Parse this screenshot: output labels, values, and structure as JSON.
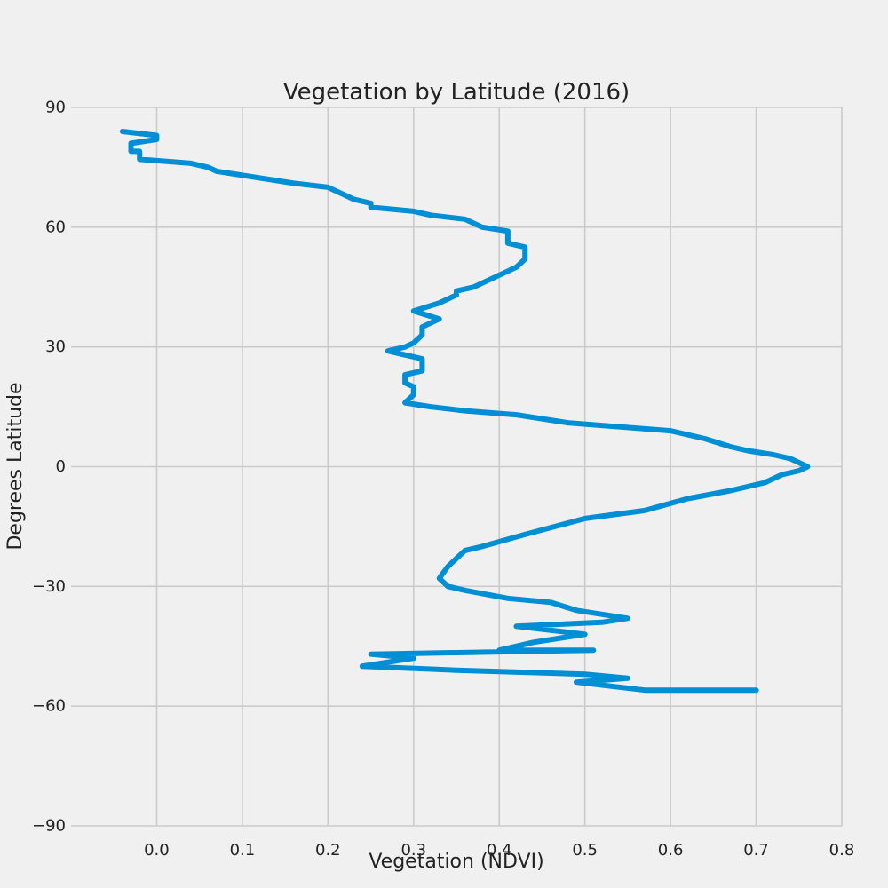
{
  "chart_data": {
    "type": "line",
    "title": "Vegetation by Latitude (2016)",
    "xlabel": "Vegetation (NDVI)",
    "ylabel": "Degrees Latitude",
    "xlim": [
      -0.1,
      0.8
    ],
    "ylim": [
      -90,
      90
    ],
    "x_ticks": [
      0.0,
      0.1,
      0.2,
      0.3,
      0.4,
      0.5,
      0.6,
      0.7,
      0.8
    ],
    "x_tick_labels": [
      "0.0",
      "0.1",
      "0.2",
      "0.3",
      "0.4",
      "0.5",
      "0.6",
      "0.7",
      "0.8"
    ],
    "y_ticks": [
      90,
      60,
      30,
      0,
      -30,
      -60,
      -90
    ],
    "y_tick_labels": [
      "90",
      "60",
      "30",
      "0",
      "−30",
      "−60",
      "−90"
    ],
    "grid": true,
    "colors": {
      "background": "#f0f0f0",
      "line": "#008fd5",
      "grid": "#cbcbcb",
      "text": "#222222"
    },
    "series": [
      {
        "x": [
          -0.04,
          0.0,
          0.0,
          -0.03,
          -0.03,
          -0.02,
          -0.02,
          0.04,
          0.06,
          0.07,
          0.1,
          0.13,
          0.16,
          0.2,
          0.23,
          0.25,
          0.25,
          0.3,
          0.32,
          0.36,
          0.38,
          0.41,
          0.41,
          0.43,
          0.43,
          0.42,
          0.41,
          0.39,
          0.37,
          0.35,
          0.35,
          0.33,
          0.3,
          0.33,
          0.31,
          0.31,
          0.3,
          0.29,
          0.27,
          0.29,
          0.31,
          0.31,
          0.29,
          0.29,
          0.3,
          0.3,
          0.29,
          0.32,
          0.36,
          0.42,
          0.48,
          0.54,
          0.6,
          0.64,
          0.67,
          0.69,
          0.72,
          0.74,
          0.76,
          0.75,
          0.73,
          0.71,
          0.67,
          0.62,
          0.57,
          0.5,
          0.43,
          0.38,
          0.36,
          0.35,
          0.34,
          0.33,
          0.34,
          0.36,
          0.41,
          0.46,
          0.49,
          0.55,
          0.52,
          0.42,
          0.5,
          0.44,
          0.4,
          0.51,
          0.25,
          0.3,
          0.27,
          0.24,
          0.35,
          0.5,
          0.55,
          0.49,
          0.57,
          0.7
        ],
        "y": [
          84,
          83,
          82,
          81,
          79,
          79,
          77,
          76,
          75,
          74,
          73,
          72,
          71,
          70,
          67,
          66,
          65,
          64,
          63,
          62,
          60,
          59,
          56,
          55,
          52,
          50,
          49,
          47,
          45,
          44,
          43,
          41,
          39,
          37,
          35,
          33,
          31,
          30,
          29,
          28,
          27,
          24,
          23,
          21,
          20,
          18,
          16,
          15,
          14,
          13,
          11,
          10,
          9,
          7,
          5,
          4,
          3,
          2,
          0,
          -1,
          -2,
          -4,
          -6,
          -8,
          -11,
          -13,
          -17,
          -20,
          -21,
          -23,
          -25,
          -28,
          -30,
          -31,
          -33,
          -34,
          -36,
          -38,
          -39,
          -40,
          -42,
          -44,
          -46,
          -46,
          -47,
          -48,
          -49,
          -50,
          -51,
          -52,
          -53,
          -54,
          -56,
          -56
        ]
      }
    ]
  }
}
